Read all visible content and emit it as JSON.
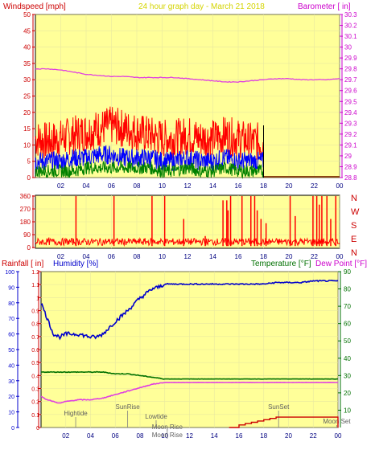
{
  "chart_data": [
    {
      "type": "line",
      "title": "24 hour graph day - March 21 2018",
      "ylabel_left": "Windspeed [mph]",
      "ylabel_right": "Barometer [ in]",
      "x_ticks": [
        "02",
        "04",
        "06",
        "08",
        "10",
        "12",
        "14",
        "16",
        "18",
        "20",
        "22",
        "00"
      ],
      "ylim_left": [
        0,
        50
      ],
      "yticks_left": [
        "0",
        "5",
        "10",
        "15",
        "20",
        "25",
        "30",
        "35",
        "40",
        "45",
        "50"
      ],
      "ylim_right": [
        28.8,
        30.3
      ],
      "yticks_right": [
        "28.8",
        "28.9",
        "29",
        "29.1",
        "29.2",
        "29.3",
        "29.4",
        "29.5",
        "29.6",
        "29.7",
        "29.8",
        "29.9",
        "30",
        "30.1",
        "30.2",
        "30.3"
      ],
      "data_ends_hour": 18,
      "series": [
        {
          "name": "Barometer",
          "color": "#e040e0",
          "x": [
            0,
            1,
            2,
            3,
            4,
            5,
            6,
            7,
            8,
            9,
            10,
            11,
            12,
            13,
            14,
            15,
            16,
            17,
            18,
            19,
            20,
            21,
            22,
            23,
            24
          ],
          "values": [
            29.8,
            29.8,
            29.79,
            29.77,
            29.75,
            29.74,
            29.73,
            29.73,
            29.72,
            29.72,
            29.72,
            29.72,
            29.71,
            29.7,
            29.69,
            29.68,
            29.68,
            29.69,
            29.7,
            29.71,
            29.71,
            29.7,
            29.7,
            29.7,
            29.71
          ]
        },
        {
          "color": "#ff0000",
          "x": [
            0,
            1,
            2,
            3,
            4,
            5,
            6,
            7,
            8,
            9,
            10,
            11,
            12,
            13,
            14,
            15,
            16,
            17,
            18
          ],
          "values": [
            12,
            11,
            12,
            13,
            14,
            15,
            16,
            15,
            14,
            13,
            12,
            12,
            13,
            12,
            12,
            13,
            12,
            11,
            11
          ]
        },
        {
          "color": "#0000ff",
          "x": [
            0,
            1,
            2,
            3,
            4,
            5,
            6,
            7,
            8,
            9,
            10,
            11,
            12,
            13,
            14,
            15,
            16,
            17,
            18
          ],
          "values": [
            5,
            5,
            5,
            6,
            6,
            7,
            7,
            6,
            6,
            6,
            5,
            5,
            6,
            5,
            5,
            6,
            5,
            5,
            5
          ]
        },
        {
          "color": "#008000",
          "x": [
            0,
            1,
            2,
            3,
            4,
            5,
            6,
            7,
            8,
            9,
            10,
            11,
            12,
            13,
            14,
            15,
            16,
            17,
            18
          ],
          "values": [
            2,
            2,
            2,
            2,
            3,
            3,
            3,
            3,
            3,
            3,
            2,
            2,
            3,
            2,
            2,
            3,
            2,
            2,
            2
          ]
        },
        {
          "color": "#8b4513",
          "x": [
            18,
            24
          ],
          "values": [
            0,
            0
          ]
        }
      ]
    },
    {
      "type": "line",
      "yticks_left": [
        "0",
        "90",
        "180",
        "270",
        "360"
      ],
      "ylim_left": [
        0,
        360
      ],
      "ylabel_right_letters": [
        "N",
        "W",
        "S",
        "E",
        "N"
      ],
      "x_ticks": [
        "02",
        "04",
        "06",
        "08",
        "10",
        "12",
        "14",
        "16",
        "18",
        "20",
        "22",
        "00"
      ],
      "series": [
        {
          "color": "#ff0000",
          "description_hint": "wind direction",
          "baseline": 40,
          "spikes": [
            [
              3.2,
              360
            ],
            [
              6.2,
              360
            ],
            [
              9.2,
              360
            ],
            [
              10.2,
              360
            ],
            [
              11.7,
              200
            ],
            [
              13.4,
              80
            ],
            [
              14.8,
              330
            ],
            [
              15.1,
              330
            ],
            [
              15.2,
              260
            ],
            [
              15.4,
              360
            ],
            [
              16.3,
              360
            ],
            [
              17.0,
              360
            ],
            [
              17.3,
              360
            ],
            [
              17.5,
              260
            ],
            [
              17.8,
              200
            ],
            [
              18.2,
              170
            ],
            [
              20.1,
              360
            ],
            [
              20.5,
              220
            ],
            [
              21.9,
              360
            ],
            [
              22.2,
              360
            ],
            [
              22.4,
              300
            ],
            [
              22.6,
              360
            ],
            [
              23.0,
              360
            ],
            [
              23.3,
              200
            ],
            [
              23.7,
              360
            ]
          ]
        }
      ]
    },
    {
      "type": "line",
      "ylabel_left1": "Rainfall [ in]",
      "ylabel_left2": "Humidity [%]",
      "ylabel_right1": "Temperature [°F]",
      "ylabel_right2": "Dew Point [°F]",
      "yticks_rain": [
        "0",
        "0.1",
        "0.2",
        "0.3",
        "0.4",
        "0.5",
        "0.6",
        "0.7",
        "0.8",
        "0.9",
        "1",
        "1.1",
        "1.2"
      ],
      "ylim_rain": [
        0,
        1.2
      ],
      "yticks_humidity": [
        "0",
        "10",
        "20",
        "30",
        "40",
        "50",
        "60",
        "70",
        "80",
        "90",
        "100"
      ],
      "ylim_humidity": [
        0,
        100
      ],
      "yticks_temp": [
        "10",
        "20",
        "30",
        "40",
        "50",
        "60",
        "70",
        "80",
        "90"
      ],
      "ylim_temp": [
        0,
        90
      ],
      "x_ticks": [
        "02",
        "04",
        "06",
        "08",
        "10",
        "12",
        "14",
        "16",
        "18",
        "20",
        "22",
        "00"
      ],
      "annotations": [
        {
          "label": "Hightide",
          "hour": 2.8
        },
        {
          "label": "SunRise",
          "hour": 7.0
        },
        {
          "label": "Lowtide",
          "hour": 9.3
        },
        {
          "label": "Moon Rise",
          "hour": 10.2
        },
        {
          "label": "Moon Rise",
          "hour": 10.2
        },
        {
          "label": "SunSet",
          "hour": 19.2
        },
        {
          "label": "Moon Set",
          "hour": 23.9
        }
      ],
      "series": [
        {
          "color": "#0000cc",
          "scale": "humidity",
          "x": [
            0,
            0.5,
            1,
            1.5,
            2,
            3,
            4,
            4.5,
            5,
            6,
            7,
            8,
            8.5,
            9,
            9.5,
            10,
            12,
            14,
            16,
            18,
            19,
            20,
            21,
            22,
            23,
            24
          ],
          "values": [
            80,
            70,
            60,
            58,
            60,
            60,
            58,
            58,
            60,
            68,
            75,
            83,
            86,
            89,
            90,
            92,
            92,
            92,
            92,
            92,
            93,
            93,
            93,
            94,
            94,
            94
          ]
        },
        {
          "color": "#007000",
          "scale": "temp",
          "x": [
            0,
            1,
            2,
            3,
            4,
            5,
            6,
            7,
            8,
            9,
            10,
            12,
            14,
            16,
            18,
            20,
            22,
            24
          ],
          "values": [
            32,
            32,
            32,
            32,
            32,
            32,
            31,
            31,
            30,
            29,
            28,
            28,
            28,
            28,
            28,
            28,
            28,
            28
          ]
        },
        {
          "color": "#e040e0",
          "scale": "temp",
          "x": [
            0,
            0.5,
            1,
            1.5,
            2,
            3,
            4,
            5,
            6,
            7,
            8,
            9,
            10,
            12,
            14,
            16,
            18,
            20,
            22,
            24
          ],
          "values": [
            18,
            16,
            15,
            14,
            15,
            16,
            16,
            17,
            19,
            21,
            23,
            25,
            26,
            26,
            26,
            26,
            26,
            26,
            26,
            26
          ]
        },
        {
          "color": "#cc0000",
          "scale": "rain",
          "x": [
            15.2,
            16,
            16.5,
            17,
            17.5,
            18,
            18.5,
            19,
            20,
            21,
            22,
            23,
            23.9,
            24
          ],
          "values": [
            0,
            0.02,
            0.03,
            0.04,
            0.05,
            0.06,
            0.07,
            0.08,
            0.08,
            0.08,
            0.08,
            0.08,
            0.08,
            0
          ]
        }
      ]
    }
  ]
}
